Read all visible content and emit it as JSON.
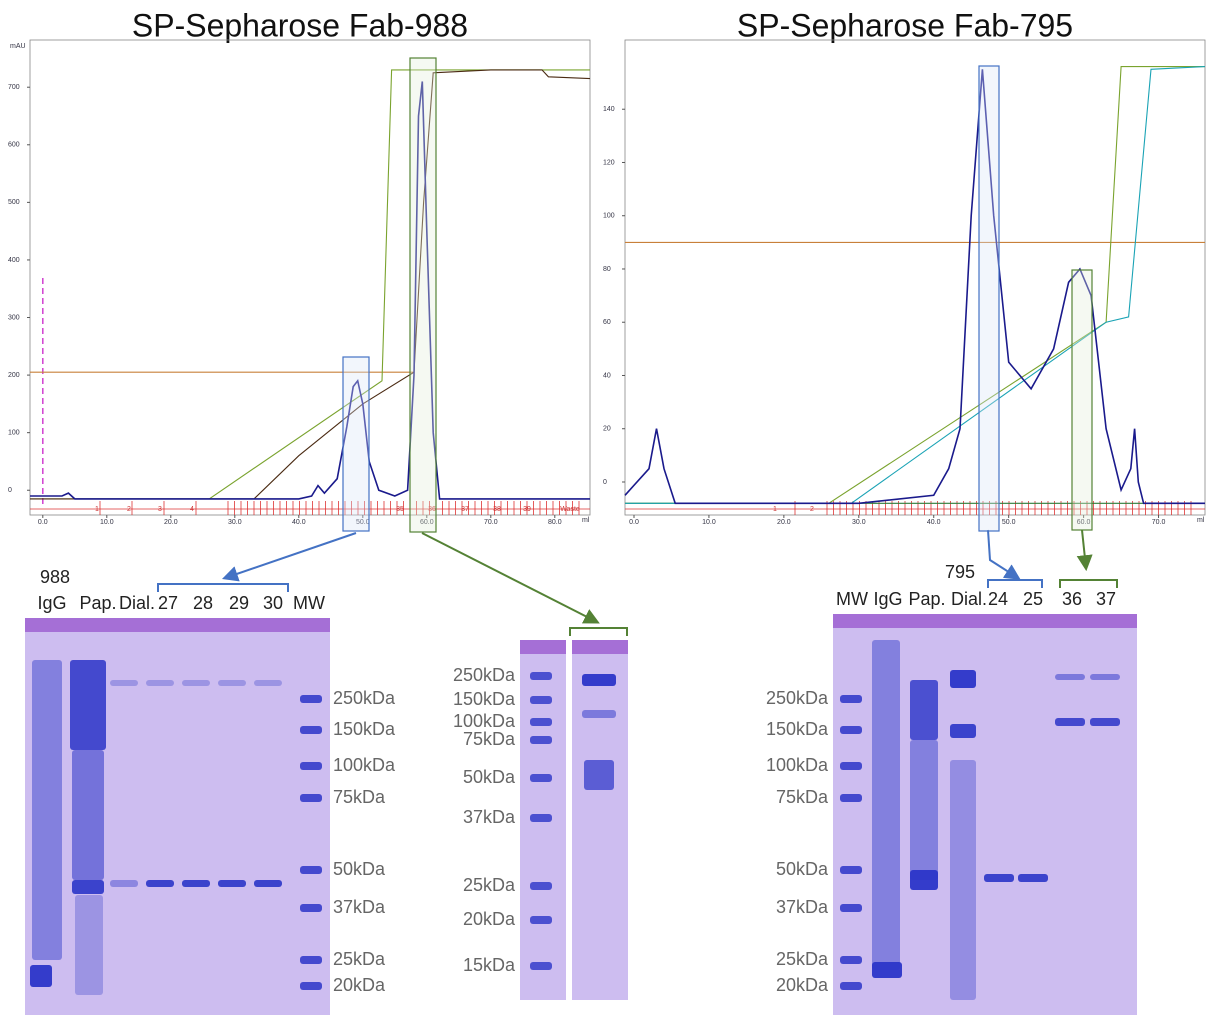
{
  "chart_data": [
    {
      "type": "line",
      "title": "SP-Sepharose Fab-988",
      "y_label": "mAU",
      "x_label": "ml",
      "xlim": [
        -2,
        85.5
      ],
      "ylim": [
        -43,
        782
      ],
      "xticks": [
        {
          "value": 0,
          "label": "0.0"
        },
        {
          "value": 10,
          "label": "10.0"
        },
        {
          "value": 20,
          "label": "20.0"
        },
        {
          "value": 30,
          "label": "30.0"
        },
        {
          "value": 40,
          "label": "40.0"
        },
        {
          "value": 50,
          "label": "50.0"
        },
        {
          "value": 60,
          "label": "60.0"
        },
        {
          "value": 70,
          "label": "70.0"
        },
        {
          "value": 80,
          "label": "80.0"
        }
      ],
      "yticks": [
        0,
        100,
        200,
        300,
        400,
        500,
        600,
        700
      ],
      "fraction_labels": [
        "1",
        "2",
        "3",
        "4",
        "35",
        "36",
        "37",
        "38",
        "39",
        "Waste"
      ],
      "series": [
        {
          "color": "#c8803a",
          "x": [
            -2,
            58
          ],
          "values": [
            205,
            205
          ]
        },
        {
          "color": "#7aa32e",
          "x": [
            -2,
            26,
            53,
            54.5,
            85.5
          ],
          "values": [
            -15,
            -15,
            190,
            730,
            730
          ]
        },
        {
          "color": "#4a2a12",
          "x": [
            -2,
            33,
            40,
            50,
            58,
            59.5,
            61,
            70,
            78,
            79,
            85.5
          ],
          "values": [
            -15,
            -15,
            60,
            150,
            205,
            500,
            725,
            730,
            730,
            718,
            715
          ]
        },
        {
          "color": "#1a1a8c",
          "x": [
            -2,
            3,
            4,
            5,
            40,
            42,
            43,
            44,
            46,
            47.5,
            48.5,
            49.2,
            50,
            51,
            52.5,
            55,
            57,
            58,
            58.7,
            59.3,
            60,
            61,
            62,
            70,
            85.5
          ],
          "values": [
            -10,
            -10,
            -5,
            -15,
            -15,
            -10,
            8,
            -5,
            20,
            110,
            180,
            190,
            150,
            50,
            0,
            -10,
            0,
            200,
            650,
            710,
            450,
            100,
            -15,
            -15,
            -15
          ]
        }
      ]
    },
    {
      "type": "line",
      "title": "SP-Sepharose Fab-795",
      "x_label": "ml",
      "xlim": [
        -1.2,
        76.2
      ],
      "ylim": [
        -12.4,
        166
      ],
      "xticks": [
        {
          "value": 0,
          "label": "0.0"
        },
        {
          "value": 10,
          "label": "10.0"
        },
        {
          "value": 20,
          "label": "20.0"
        },
        {
          "value": 30,
          "label": "30.0"
        },
        {
          "value": 40,
          "label": "40.0"
        },
        {
          "value": 50,
          "label": "50.0"
        },
        {
          "value": 60,
          "label": "60.0"
        },
        {
          "value": 70,
          "label": "70.0"
        }
      ],
      "yticks": [
        0,
        20,
        40,
        60,
        80,
        100,
        120,
        140
      ],
      "fraction_labels": [
        "1",
        "2"
      ],
      "series": [
        {
          "color": "#c8803a",
          "x": [
            -1.2,
            76.2
          ],
          "values": [
            90,
            90
          ]
        },
        {
          "color": "#2e7d3a",
          "x": [
            -1.2,
            76.2
          ],
          "values": [
            -8,
            -8
          ]
        },
        {
          "color": "#7aa32e",
          "x": [
            -1.2,
            26,
            63,
            65,
            76.2
          ],
          "values": [
            -8,
            -8,
            60,
            156,
            156
          ]
        },
        {
          "color": "#1aa3b5",
          "x": [
            -1.2,
            29,
            63,
            66,
            69,
            76.2
          ],
          "values": [
            -8,
            -8,
            60,
            62,
            155,
            156
          ]
        },
        {
          "color": "#1a1a8c",
          "x": [
            -1.2,
            2,
            3,
            4,
            5.5,
            30,
            40,
            42,
            43.5,
            45,
            46.5,
            48,
            50,
            53,
            56,
            58,
            59.5,
            61,
            63,
            65,
            66.3,
            66.8,
            67.3,
            68,
            76.2
          ],
          "values": [
            -5,
            5,
            20,
            5,
            -8,
            -8,
            -5,
            5,
            20,
            100,
            155,
            100,
            45,
            35,
            50,
            75,
            80,
            70,
            20,
            -3,
            5,
            20,
            0,
            -8,
            -8
          ]
        }
      ]
    }
  ],
  "gels": [
    {
      "sample": "988",
      "lanes": [
        "IgG",
        "Pap.",
        "Dial.",
        "27",
        "28",
        "29",
        "30",
        "MW"
      ],
      "mw_labels": [
        "250kDa",
        "150kDa",
        "100kDa",
        "75kDa",
        "50kDa",
        "37kDa",
        "25kDa",
        "20kDa"
      ]
    },
    {
      "mw_labels": [
        "250kDa",
        "150kDa",
        "100kDa",
        "75kDa",
        "50kDa",
        "37kDa",
        "25kDa",
        "20kDa",
        "15kDa"
      ]
    },
    {
      "sample": "795",
      "lanes": [
        "MW",
        "IgG",
        "Pap.",
        "Dial.",
        "24",
        "25",
        "36",
        "37"
      ],
      "mw_labels": [
        "250kDa",
        "150kDa",
        "100kDa",
        "75kDa",
        "50kDa",
        "37kDa",
        "25kDa",
        "20kDa"
      ]
    }
  ]
}
